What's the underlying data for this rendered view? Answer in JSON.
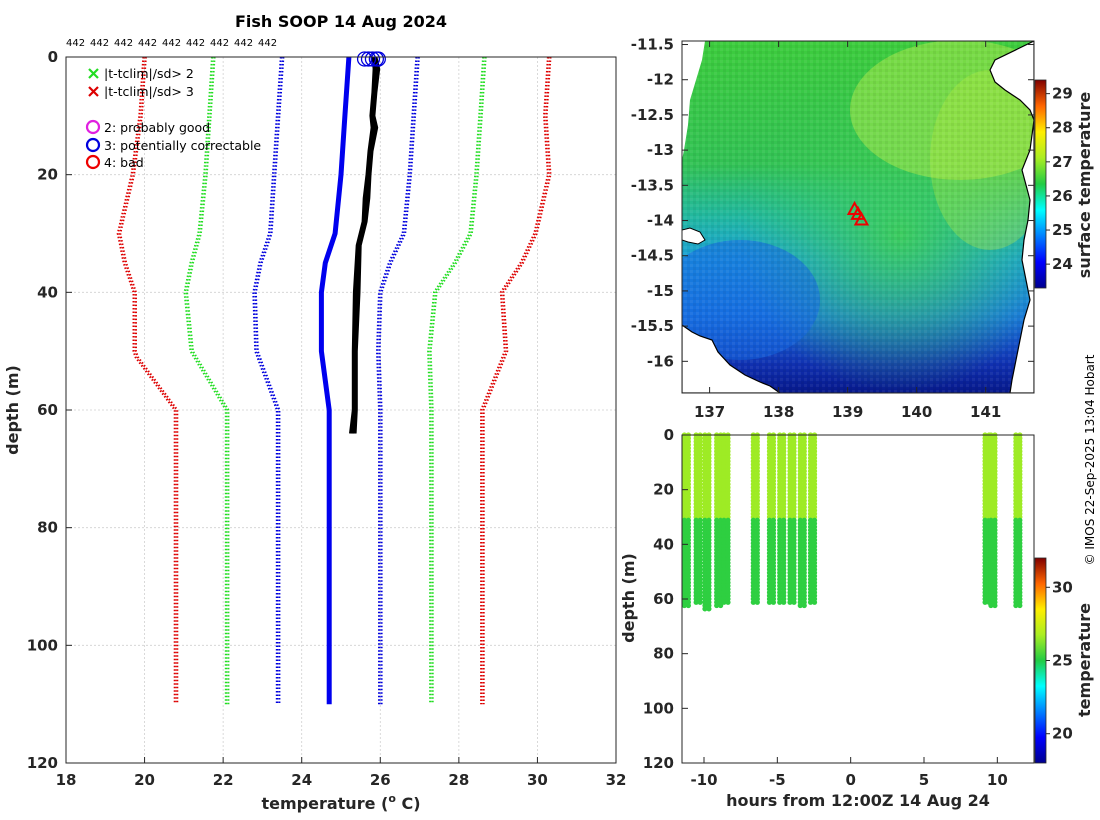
{
  "chart_data": [
    {
      "id": "profiles",
      "type": "line",
      "title": "Fish SOOP 14 Aug 2024",
      "xlabel_main": "temperature (",
      "xlabel_sup": "o",
      "xlabel_end": " C)",
      "ylabel": "depth (m)",
      "xlim": [
        18,
        32
      ],
      "ylim": [
        0,
        120
      ],
      "xticks": [
        "18",
        "20",
        "22",
        "24",
        "26",
        "28",
        "30",
        "32"
      ],
      "yticks": [
        "0",
        "20",
        "40",
        "60",
        "80",
        "100",
        "120"
      ],
      "count_labels": [
        "442",
        "442",
        "442",
        "442",
        "442",
        "442",
        "442",
        "442",
        "442"
      ],
      "legend": {
        "crosses": [
          {
            "label": "|t-tclim|/sd> 2",
            "color": "#22dd22"
          },
          {
            "label": "|t-tclim|/sd> 3",
            "color": "#dd0000"
          }
        ],
        "circles": [
          {
            "label": "2: probably good",
            "color": "#e020e0"
          },
          {
            "label": "3: potentially correctable",
            "color": "#0000dd"
          },
          {
            "label": "4: bad",
            "color": "#ee0000"
          }
        ]
      },
      "climatology": {
        "depth": [
          0,
          10,
          20,
          30,
          35,
          40,
          50,
          60,
          110
        ],
        "mean": [
          25.2,
          25.1,
          25.0,
          24.85,
          24.6,
          24.5,
          24.5,
          24.7,
          24.7
        ],
        "sd2": [
          {
            "depth": [
              0,
              10,
              20,
              30,
              35,
              40,
              50,
              60,
              110
            ],
            "temp": [
              21.75,
              21.65,
              21.55,
              21.4,
              21.2,
              21.05,
              21.2,
              22.1,
              22.1
            ],
            "color": "#22dd22"
          },
          {
            "depth": [
              0,
              10,
              20,
              30,
              35,
              40,
              50,
              60,
              110
            ],
            "temp": [
              28.65,
              28.55,
              28.45,
              28.3,
              27.9,
              27.4,
              27.25,
              27.3,
              27.3
            ],
            "color": "#22dd22"
          }
        ],
        "sd1": [
          {
            "depth": [
              0,
              10,
              20,
              30,
              35,
              40,
              50,
              60,
              110
            ],
            "temp": [
              23.5,
              23.4,
              23.3,
              23.2,
              22.95,
              22.8,
              22.85,
              23.4,
              23.4
            ],
            "color": "#0000dd"
          },
          {
            "depth": [
              0,
              10,
              20,
              30,
              35,
              40,
              50,
              60,
              110
            ],
            "temp": [
              26.95,
              26.85,
              26.75,
              26.6,
              26.25,
              26.0,
              25.95,
              26.0,
              26.0
            ],
            "color": "#0000dd"
          }
        ],
        "sd3": [
          {
            "depth": [
              0,
              10,
              20,
              30,
              35,
              40,
              50,
              51,
              60,
              110
            ],
            "temp": [
              20.0,
              19.9,
              19.7,
              19.35,
              19.5,
              19.75,
              19.75,
              19.8,
              20.8,
              20.8
            ],
            "color": "#dd0000"
          },
          {
            "depth": [
              0,
              10,
              20,
              30,
              35,
              40,
              50,
              60,
              110
            ],
            "temp": [
              30.3,
              30.2,
              30.3,
              29.95,
              29.6,
              29.1,
              29.2,
              28.6,
              28.6
            ],
            "color": "#dd0000"
          }
        ]
      },
      "observed": {
        "depth": [
          0,
          2,
          6,
          10,
          12,
          16,
          20,
          24,
          28,
          32,
          40,
          50,
          60,
          64
        ],
        "temp": [
          25.85,
          25.9,
          25.85,
          25.8,
          25.85,
          25.75,
          25.7,
          25.65,
          25.6,
          25.45,
          25.4,
          25.35,
          25.35,
          25.3
        ],
        "color": "#000000"
      },
      "flag_circles": [
        25.6,
        25.8,
        25.95,
        25.9,
        25.7
      ]
    },
    {
      "id": "map",
      "type": "heatmap",
      "xlim": [
        136.6,
        141.7
      ],
      "ylim": [
        -16.45,
        -11.45
      ],
      "xticks": [
        "137",
        "138",
        "139",
        "140",
        "141"
      ],
      "yticks": [
        "-11.5",
        "-12",
        "-12.5",
        "-13",
        "-13.5",
        "-14",
        "-14.5",
        "-15",
        "-15.5",
        "-16"
      ],
      "colorbar_label": "surface temperature",
      "colorbar_ticks": [
        "24",
        "25",
        "26",
        "27",
        "28",
        "29"
      ],
      "colorbar_range": [
        23.3,
        29.4
      ],
      "markers": [
        {
          "lon": 139.1,
          "lat": -13.85
        },
        {
          "lon": 139.2,
          "lat": -14.0
        },
        {
          "lon": 139.15,
          "lat": -13.92
        }
      ],
      "marker_color": "#ee0000"
    },
    {
      "id": "timeseries",
      "type": "scatter",
      "xlabel": "hours from 12:00Z 14 Aug 24",
      "ylabel": "depth (m)",
      "xlim": [
        -11.5,
        12.5
      ],
      "ylim": [
        0,
        120
      ],
      "xticks": [
        "-10",
        "-5",
        "0",
        "5",
        "10"
      ],
      "yticks": [
        "0",
        "20",
        "40",
        "60",
        "80",
        "100",
        "120"
      ],
      "colorbar_label": "temperature",
      "colorbar_ticks": [
        "20",
        "25",
        "30"
      ],
      "colorbar_range": [
        18,
        32
      ],
      "casts": [
        {
          "t": -11.2,
          "max_depth": 63
        },
        {
          "t": -10.4,
          "max_depth": 62
        },
        {
          "t": -9.8,
          "max_depth": 64
        },
        {
          "t": -9.0,
          "max_depth": 63
        },
        {
          "t": -8.5,
          "max_depth": 62
        },
        {
          "t": -6.5,
          "max_depth": 62
        },
        {
          "t": -5.4,
          "max_depth": 62
        },
        {
          "t": -4.7,
          "max_depth": 62
        },
        {
          "t": -4.0,
          "max_depth": 62
        },
        {
          "t": -3.3,
          "max_depth": 63
        },
        {
          "t": -2.6,
          "max_depth": 62
        },
        {
          "t": 9.3,
          "max_depth": 62
        },
        {
          "t": 9.7,
          "max_depth": 63
        },
        {
          "t": 11.4,
          "max_depth": 63
        }
      ]
    }
  ],
  "credit": "© IMOS 22-Sep-2025 13:04 Hobart"
}
